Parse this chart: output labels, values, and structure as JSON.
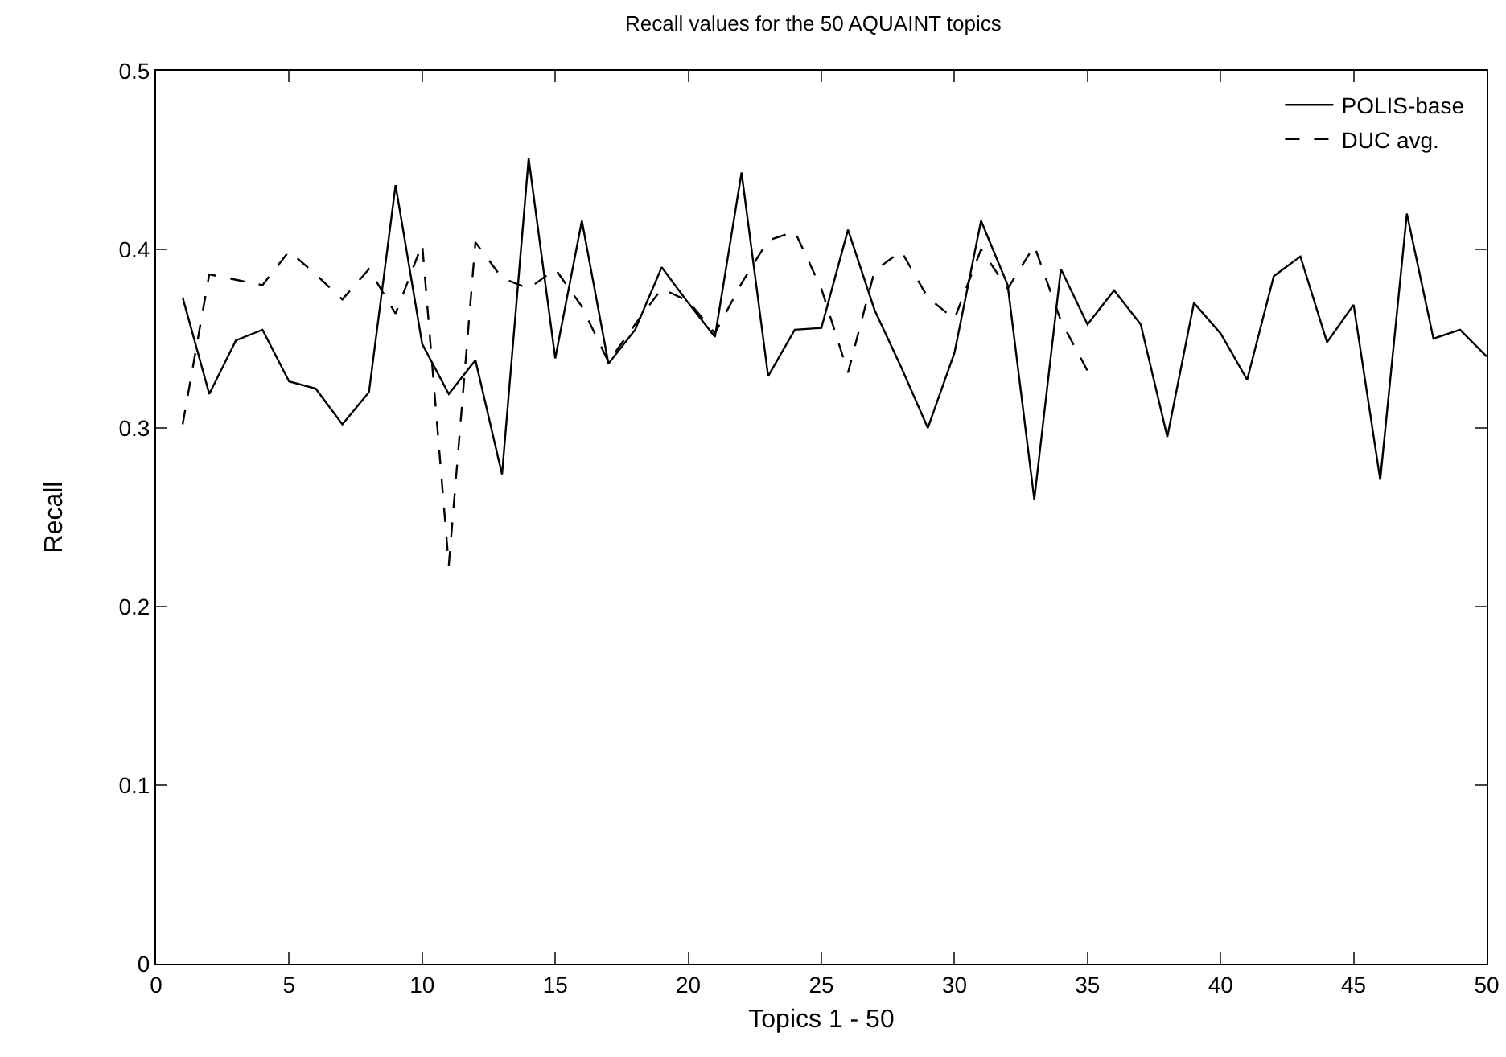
{
  "chart_data": {
    "type": "line",
    "title": "Recall values for the 50 AQUAINT topics",
    "xlabel": "Topics 1 - 50",
    "ylabel": "Recall",
    "x": [
      1,
      2,
      3,
      4,
      5,
      6,
      7,
      8,
      9,
      10,
      11,
      12,
      13,
      14,
      15,
      16,
      17,
      18,
      19,
      20,
      21,
      22,
      23,
      24,
      25,
      26,
      27,
      28,
      29,
      30,
      31,
      32,
      33,
      34,
      35,
      36,
      37,
      38,
      39,
      40,
      41,
      42,
      43,
      44,
      45,
      46,
      47,
      48,
      49,
      50
    ],
    "series": [
      {
        "name": "POLIS-base",
        "color": "#000000",
        "line_style": "solid",
        "values": [
          0.373,
          0.319,
          0.349,
          0.355,
          0.326,
          0.322,
          0.302,
          0.32,
          0.436,
          0.347,
          0.319,
          0.338,
          0.274,
          0.451,
          0.339,
          0.416,
          0.336,
          0.355,
          0.39,
          0.37,
          0.351,
          0.443,
          0.329,
          0.355,
          0.356,
          0.411,
          0.366,
          0.334,
          0.3,
          0.342,
          0.416,
          0.38,
          0.26,
          0.389,
          0.358,
          0.377,
          0.358,
          0.295,
          0.37,
          0.353,
          0.327,
          0.385,
          0.396,
          0.348,
          0.369,
          0.271,
          0.42,
          0.35,
          0.355,
          0.34
        ]
      },
      {
        "name": "DUC avg.",
        "color": "#000000",
        "line_style": "dashed",
        "values": [
          0.302,
          0.386,
          0.383,
          0.38,
          0.399,
          0.386,
          0.372,
          0.389,
          0.364,
          0.403,
          0.223,
          0.404,
          0.384,
          0.378,
          0.389,
          0.368,
          0.337,
          0.358,
          0.378,
          0.371,
          0.353,
          0.381,
          0.405,
          0.41,
          0.378,
          0.331,
          0.388,
          0.399,
          0.373,
          0.361,
          0.4,
          0.378,
          0.402,
          0.36,
          0.332,
          null,
          null,
          null,
          null,
          null,
          null,
          null,
          null,
          null,
          null,
          null,
          null,
          null,
          null,
          null
        ]
      }
    ],
    "xlim": [
      0,
      50
    ],
    "xticks": [
      0,
      5,
      10,
      15,
      20,
      25,
      30,
      35,
      40,
      45,
      50
    ],
    "ylim": [
      0,
      0.5
    ],
    "yticks": [
      0,
      0.1,
      0.2,
      0.3,
      0.4,
      0.5
    ],
    "grid": false,
    "legend": "top right",
    "marker": "none"
  }
}
